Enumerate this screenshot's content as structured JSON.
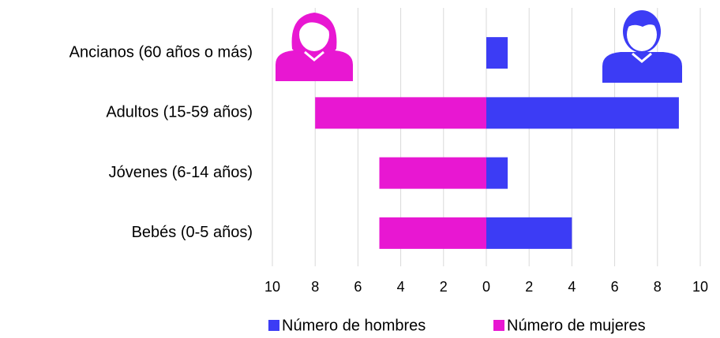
{
  "chart_data": {
    "type": "bar",
    "orientation": "horizontal",
    "categories": [
      "Ancianos (60 años o más)",
      "Adultos (15-59 años)",
      "Jóvenes (6-14 años)",
      "Bebés (0-5 años)"
    ],
    "series": [
      {
        "name": "Número de hombres",
        "color": "#3c3cf5",
        "values": [
          1,
          9,
          1,
          4
        ]
      },
      {
        "name": "Número de mujeres",
        "color": "#e817d2",
        "values": [
          0,
          -8,
          -5,
          -5
        ]
      }
    ],
    "xlim": [
      -10,
      10
    ],
    "xticks": [
      {
        "value": -10,
        "label": "10"
      },
      {
        "value": -8,
        "label": "8"
      },
      {
        "value": -6,
        "label": "6"
      },
      {
        "value": -4,
        "label": "4"
      },
      {
        "value": -2,
        "label": "2"
      },
      0,
      2,
      4,
      6,
      8,
      10
    ],
    "grid": true,
    "legend": "bottom"
  }
}
